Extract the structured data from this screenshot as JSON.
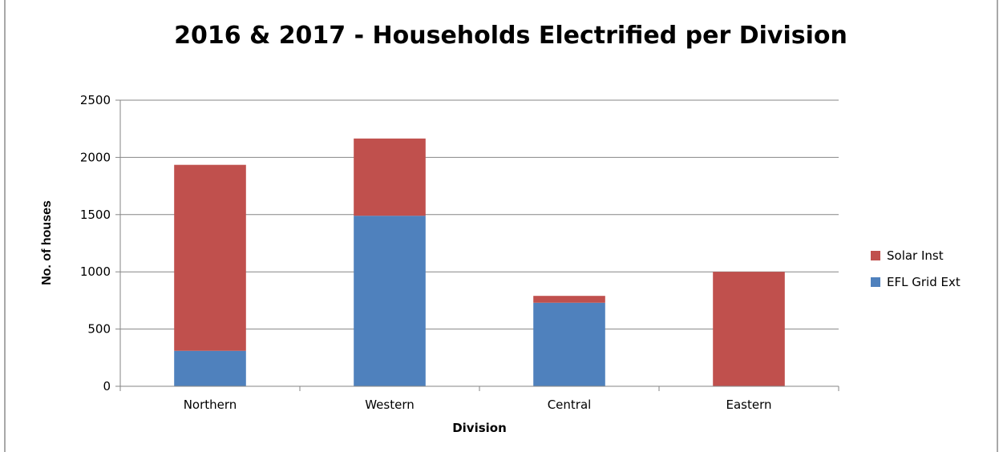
{
  "chart_data": {
    "type": "bar",
    "stacked": true,
    "title": "2016 & 2017 - Households Electrified per Division",
    "xlabel": "Division",
    "ylabel": "No. of houses",
    "ylim": [
      0,
      2500
    ],
    "yticks": [
      0,
      500,
      1000,
      1500,
      2000,
      2500
    ],
    "grid": true,
    "legend_position": "right",
    "categories": [
      "Northern",
      "Western",
      "Central",
      "Eastern"
    ],
    "series": [
      {
        "name": "EFL Grid Ext",
        "color": "#4F81BD",
        "values": [
          310,
          1490,
          730,
          0
        ]
      },
      {
        "name": "Solar  Inst",
        "color": "#C0504D",
        "values": [
          1625,
          675,
          60,
          1000
        ]
      }
    ]
  }
}
